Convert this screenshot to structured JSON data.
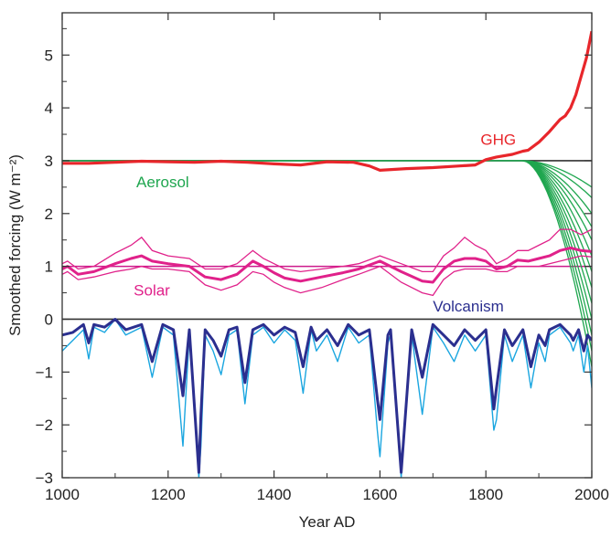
{
  "chart_data": {
    "type": "line",
    "xlabel": "Year AD",
    "ylabel": "Smoothed forcing (W m⁻²)",
    "xlim": [
      1000,
      2000
    ],
    "ylim": [
      -3,
      5.8
    ],
    "x_ticks": [
      1000,
      1200,
      1400,
      1600,
      1800,
      2000
    ],
    "y_ticks": [
      -3,
      -2,
      -1,
      0,
      1,
      2,
      3,
      4,
      5
    ],
    "reference_lines": [
      {
        "y": 3,
        "color": "#333333"
      },
      {
        "y": 1,
        "color": "#cc1a8c"
      },
      {
        "y": 0,
        "color": "#333333"
      }
    ],
    "labels": [
      {
        "text": "GHG",
        "x": 1790,
        "y": 3.3,
        "color": "#e8262b"
      },
      {
        "text": "Aerosol",
        "x": 1140,
        "y": 2.5,
        "color": "#1fa64f"
      },
      {
        "text": "Solar",
        "x": 1135,
        "y": 0.45,
        "color": "#e0218a"
      },
      {
        "text": "Volcanism",
        "x": 1700,
        "y": 0.15,
        "color": "#2b2f8f"
      }
    ],
    "series": [
      {
        "name": "GHG",
        "color": "#e8262b",
        "x": [
          1000,
          1050,
          1100,
          1150,
          1200,
          1250,
          1300,
          1350,
          1400,
          1450,
          1500,
          1550,
          1580,
          1600,
          1650,
          1700,
          1750,
          1780,
          1800,
          1820,
          1850,
          1870,
          1880,
          1900,
          1920,
          1940,
          1950,
          1960,
          1970,
          1980,
          1990,
          2000
        ],
        "y": [
          2.95,
          2.95,
          2.97,
          2.99,
          2.98,
          2.97,
          2.99,
          2.97,
          2.94,
          2.92,
          2.98,
          2.97,
          2.9,
          2.82,
          2.85,
          2.87,
          2.9,
          2.92,
          3.02,
          3.07,
          3.12,
          3.18,
          3.2,
          3.35,
          3.55,
          3.78,
          3.85,
          4.0,
          4.25,
          4.6,
          4.95,
          5.45
        ]
      },
      {
        "name": "Solar",
        "color": "#e0218a",
        "x": [
          1000,
          1010,
          1030,
          1060,
          1100,
          1130,
          1150,
          1170,
          1200,
          1240,
          1270,
          1300,
          1330,
          1360,
          1380,
          1400,
          1420,
          1450,
          1490,
          1530,
          1560,
          1600,
          1640,
          1680,
          1700,
          1720,
          1740,
          1760,
          1780,
          1800,
          1820,
          1840,
          1860,
          1880,
          1900,
          1920,
          1940,
          1960,
          1980,
          2000
        ],
        "y": [
          0.95,
          1.0,
          0.85,
          0.9,
          1.05,
          1.15,
          1.2,
          1.1,
          1.05,
          1.0,
          0.8,
          0.75,
          0.85,
          1.1,
          1.0,
          0.88,
          0.78,
          0.72,
          0.8,
          0.88,
          0.95,
          1.1,
          0.9,
          0.72,
          0.7,
          0.95,
          1.1,
          1.15,
          1.15,
          1.1,
          0.95,
          1.0,
          1.12,
          1.1,
          1.15,
          1.2,
          1.3,
          1.35,
          1.3,
          1.28
        ]
      },
      {
        "name": "Volcanism",
        "color": "#2b2f8f",
        "x": [
          1000,
          1020,
          1040,
          1050,
          1060,
          1080,
          1100,
          1120,
          1150,
          1170,
          1190,
          1210,
          1228,
          1240,
          1258,
          1262,
          1270,
          1285,
          1300,
          1315,
          1330,
          1345,
          1360,
          1380,
          1400,
          1420,
          1440,
          1455,
          1470,
          1480,
          1500,
          1520,
          1540,
          1560,
          1580,
          1595,
          1600,
          1615,
          1620,
          1640,
          1660,
          1680,
          1700,
          1720,
          1740,
          1760,
          1780,
          1800,
          1815,
          1820,
          1835,
          1850,
          1870,
          1885,
          1900,
          1912,
          1920,
          1940,
          1960,
          1965,
          1975,
          1985,
          1992,
          2000
        ],
        "y": [
          -0.3,
          -0.25,
          -0.1,
          -0.45,
          -0.1,
          -0.15,
          0,
          -0.2,
          -0.1,
          -0.8,
          -0.1,
          -0.2,
          -1.45,
          -0.2,
          -2.9,
          -1.8,
          -0.2,
          -0.4,
          -0.7,
          -0.2,
          -0.15,
          -1.2,
          -0.2,
          -0.1,
          -0.3,
          -0.15,
          -0.25,
          -0.9,
          -0.15,
          -0.4,
          -0.2,
          -0.5,
          -0.1,
          -0.3,
          -0.2,
          -1.5,
          -1.9,
          -0.3,
          -0.2,
          -2.9,
          -0.2,
          -1.1,
          -0.1,
          -0.3,
          -0.5,
          -0.2,
          -0.4,
          -0.2,
          -1.7,
          -1.3,
          -0.2,
          -0.5,
          -0.2,
          -0.9,
          -0.3,
          -0.5,
          -0.2,
          -0.1,
          -0.3,
          -0.4,
          -0.2,
          -0.6,
          -0.3,
          -0.4
        ]
      },
      {
        "name": "Volcanism (range)",
        "color": "#1aa6e0",
        "x": [
          1000,
          1020,
          1040,
          1050,
          1060,
          1080,
          1100,
          1120,
          1150,
          1170,
          1190,
          1210,
          1228,
          1240,
          1258,
          1262,
          1270,
          1285,
          1300,
          1315,
          1330,
          1345,
          1360,
          1380,
          1400,
          1420,
          1440,
          1455,
          1470,
          1480,
          1500,
          1520,
          1540,
          1560,
          1580,
          1595,
          1600,
          1615,
          1620,
          1640,
          1660,
          1680,
          1700,
          1720,
          1740,
          1760,
          1780,
          1800,
          1815,
          1820,
          1835,
          1850,
          1870,
          1885,
          1900,
          1912,
          1920,
          1940,
          1960,
          1965,
          1975,
          1985,
          1992,
          2000
        ],
        "y": [
          -0.6,
          -0.4,
          -0.2,
          -0.75,
          -0.15,
          -0.25,
          0,
          -0.3,
          -0.15,
          -1.1,
          -0.15,
          -0.3,
          -2.4,
          -0.3,
          -3.0,
          -2.4,
          -0.3,
          -0.6,
          -1.05,
          -0.3,
          -0.2,
          -1.6,
          -0.3,
          -0.15,
          -0.45,
          -0.2,
          -0.4,
          -1.4,
          -0.2,
          -0.6,
          -0.3,
          -0.8,
          -0.15,
          -0.45,
          -0.3,
          -2.1,
          -2.6,
          -0.45,
          -0.3,
          -3.0,
          -0.3,
          -1.8,
          -0.15,
          -0.45,
          -0.8,
          -0.3,
          -0.6,
          -0.3,
          -2.1,
          -1.9,
          -0.3,
          -0.8,
          -0.3,
          -1.3,
          -0.45,
          -0.8,
          -0.3,
          -0.15,
          -0.45,
          -0.6,
          -0.3,
          -1.0,
          -0.5,
          -1.3
        ]
      }
    ],
    "solar_envelope": {
      "color": "#e0218a",
      "x": [
        1000,
        1010,
        1030,
        1060,
        1100,
        1130,
        1150,
        1170,
        1200,
        1240,
        1270,
        1300,
        1330,
        1360,
        1380,
        1400,
        1420,
        1450,
        1490,
        1530,
        1560,
        1600,
        1640,
        1680,
        1700,
        1720,
        1740,
        1760,
        1780,
        1800,
        1820,
        1840,
        1860,
        1880,
        1900,
        1920,
        1940,
        1960,
        1980,
        2000
      ],
      "upper": [
        1.05,
        1.1,
        0.95,
        1.0,
        1.25,
        1.4,
        1.55,
        1.3,
        1.2,
        1.15,
        0.95,
        0.95,
        1.05,
        1.3,
        1.15,
        1.05,
        0.95,
        0.9,
        0.95,
        1.0,
        1.05,
        1.2,
        1.05,
        0.9,
        0.9,
        1.2,
        1.35,
        1.55,
        1.4,
        1.3,
        1.05,
        1.15,
        1.3,
        1.3,
        1.4,
        1.5,
        1.7,
        1.7,
        1.6,
        1.7
      ],
      "lower": [
        0.85,
        0.9,
        0.75,
        0.8,
        0.9,
        0.95,
        1.0,
        0.95,
        0.95,
        0.9,
        0.65,
        0.55,
        0.65,
        0.9,
        0.85,
        0.7,
        0.6,
        0.5,
        0.6,
        0.75,
        0.85,
        1.0,
        0.7,
        0.5,
        0.45,
        0.75,
        0.9,
        0.95,
        0.95,
        0.95,
        0.9,
        0.9,
        1.0,
        1.0,
        1.0,
        1.05,
        1.1,
        1.15,
        1.2,
        1.18
      ]
    },
    "aerosol_fan": {
      "color": "#1fa64f",
      "start_year": 1870,
      "start_value": 3,
      "end_values_2000": [
        2.5,
        2.3,
        2.0,
        1.75,
        1.5,
        1.2,
        0.9,
        0.6,
        0.3,
        0.0,
        -0.3,
        -0.6,
        -0.9
      ]
    }
  }
}
